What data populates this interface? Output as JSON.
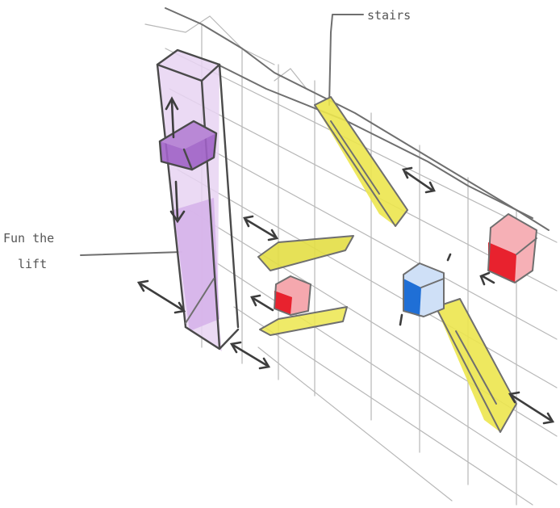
{
  "labels": {
    "stairs": "stairs",
    "lift_line1": "Fun the",
    "lift_line2": "lift"
  },
  "colors": {
    "lift_shaft": "#d9b6ec",
    "lift_cabin": "#a060c8",
    "stairs": "#e8e24a",
    "red_box": "#e8222e",
    "red_box_light": "#f4a0a6",
    "blue_box": "#1f6fd6",
    "blue_box_light": "#c7daf6",
    "pencil": "#6f6f6f"
  },
  "elements": [
    "lift-shaft",
    "lift-cabin",
    "stair-upper",
    "stair-lower-right",
    "landing-left",
    "landing-lower",
    "box-red-small",
    "box-blue",
    "box-red-large"
  ]
}
